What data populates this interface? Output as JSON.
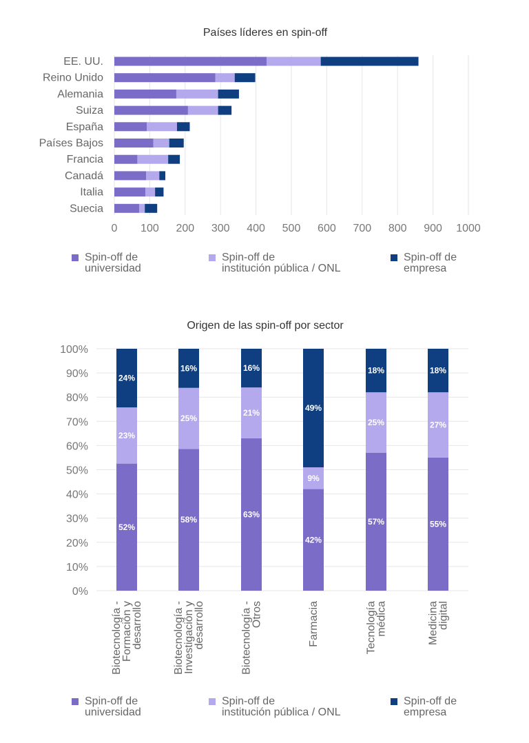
{
  "colors": {
    "universidad": "#7b6cc8",
    "institucion": "#b3a9ec",
    "empresa": "#0f3f80"
  },
  "chart_data": [
    {
      "type": "bar",
      "orientation": "horizontal",
      "stacked": true,
      "title": "Países líderes en spin-off",
      "categories": [
        "EE. UU.",
        "Reino Unido",
        "Alemania",
        "Suiza",
        "España",
        "Países Bajos",
        "Francia",
        "Canadá",
        "Italia",
        "Suecia"
      ],
      "series": [
        {
          "name": "Spin-off de universidad",
          "values": [
            430,
            285,
            175,
            208,
            92,
            110,
            65,
            90,
            88,
            70
          ]
        },
        {
          "name": "Spin-off de institución pública / ONL",
          "values": [
            153,
            55,
            118,
            85,
            85,
            45,
            87,
            37,
            27,
            16
          ]
        },
        {
          "name": "Spin-off de empresa",
          "values": [
            276,
            58,
            59,
            38,
            36,
            41,
            33,
            17,
            24,
            35
          ]
        }
      ],
      "xlim": [
        0,
        1000
      ],
      "xticks": [
        "0",
        "100",
        "200",
        "300",
        "400",
        "500",
        "600",
        "700",
        "800",
        "900",
        "1000"
      ],
      "grid": true,
      "legend": "bottom"
    },
    {
      "type": "bar",
      "orientation": "vertical",
      "stacked": true,
      "percent": true,
      "title": "Origen de las spin-off por sector",
      "categories": [
        [
          "Biotecnología -",
          "Formación y",
          "desarrollo"
        ],
        [
          "Biotecnología -",
          "Investigación y",
          "desarrollo"
        ],
        [
          "Biotecnología -",
          "Otros"
        ],
        [
          "Farmacia"
        ],
        [
          "Tecnología",
          "médica"
        ],
        [
          "Medicina",
          "digital"
        ]
      ],
      "series": [
        {
          "name": "Spin-off de universidad",
          "values": [
            52,
            58,
            63,
            42,
            57,
            55
          ],
          "labels": [
            "52%",
            "58%",
            "63%",
            "42%",
            "57%",
            "55%"
          ]
        },
        {
          "name": "Spin-off de institución pública / ONL",
          "values": [
            23,
            25,
            21,
            9,
            25,
            27
          ],
          "labels": [
            "23%",
            "25%",
            "21%",
            "9%",
            "25%",
            "27%"
          ]
        },
        {
          "name": "Spin-off de empresa",
          "values": [
            24,
            16,
            16,
            49,
            18,
            18
          ],
          "labels": [
            "24%",
            "16%",
            "16%",
            "49%",
            "18%",
            "18%"
          ]
        }
      ],
      "ylim": [
        0,
        100
      ],
      "yticks": [
        "0%",
        "10%",
        "20%",
        "30%",
        "40%",
        "50%",
        "60%",
        "70%",
        "80%",
        "90%",
        "100%"
      ],
      "grid": true,
      "legend": "bottom"
    }
  ],
  "legend": [
    {
      "key": "universidad",
      "lines": [
        "Spin-off de",
        "universidad"
      ]
    },
    {
      "key": "institucion",
      "lines": [
        "Spin-off de",
        "institución pública / ONL"
      ]
    },
    {
      "key": "empresa",
      "lines": [
        "Spin-off de",
        "empresa"
      ]
    }
  ]
}
